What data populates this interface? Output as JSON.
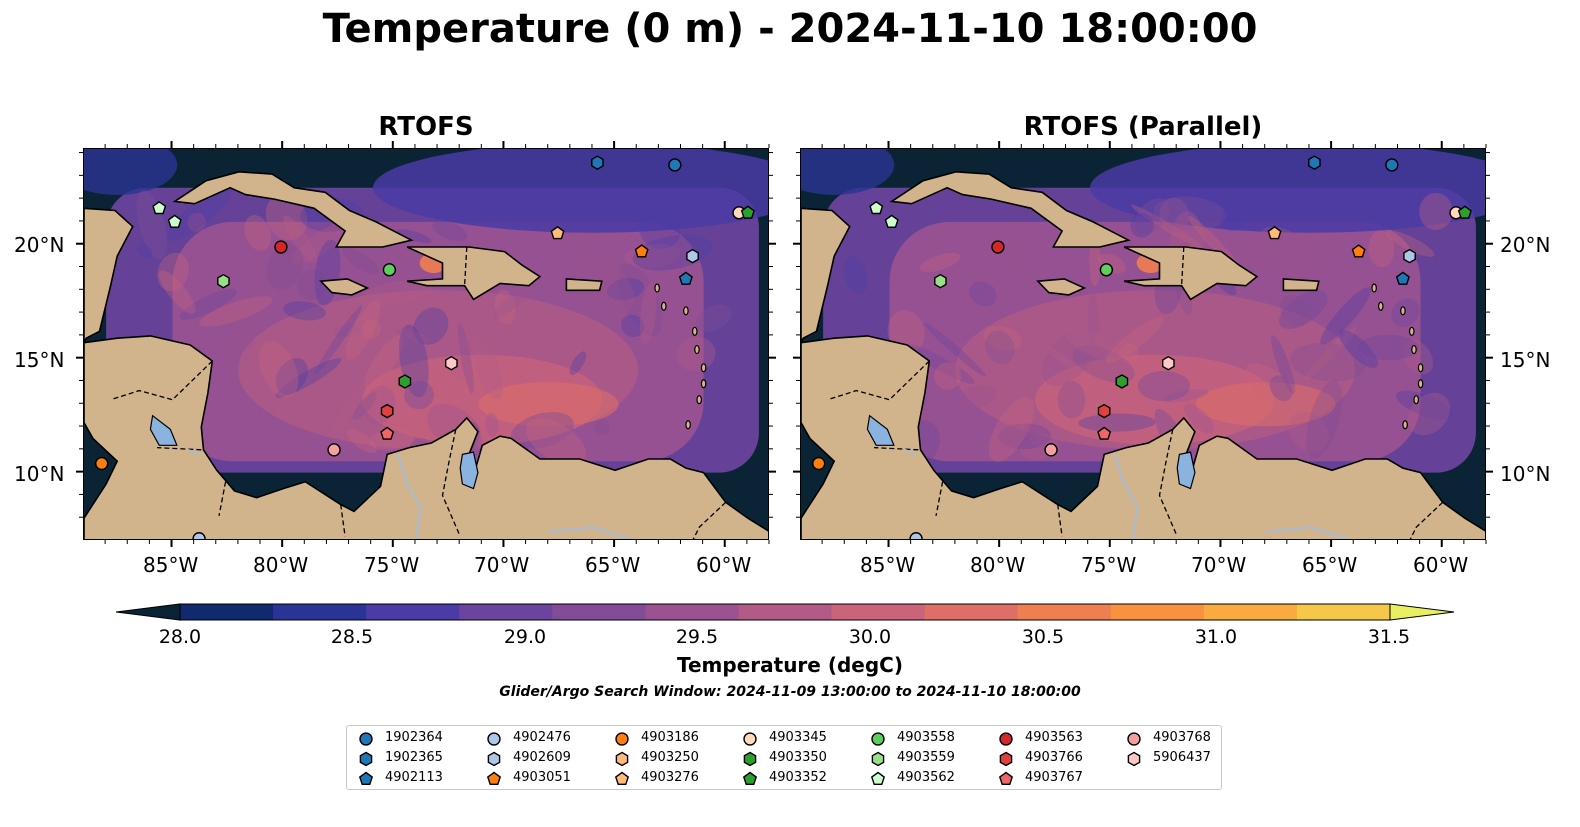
{
  "title": "Temperature (0 m) - 2024-11-10 18:00:00",
  "panels": [
    {
      "title": "RTOFS"
    },
    {
      "title": "RTOFS (Parallel)"
    }
  ],
  "axes": {
    "lon_ticks": [
      "85°W",
      "80°W",
      "75°W",
      "70°W",
      "65°W",
      "60°W"
    ],
    "lat_ticks": [
      "20°N",
      "15°N",
      "10°N"
    ],
    "lon_range": [
      -89,
      -58
    ],
    "lat_range": [
      7,
      24.2
    ]
  },
  "colorbar": {
    "label": "Temperature (degC)",
    "ticks": [
      "28.0",
      "28.5",
      "29.0",
      "29.5",
      "30.0",
      "30.5",
      "31.0",
      "31.5"
    ],
    "range": [
      28.0,
      31.5
    ],
    "colors": [
      "#0a2436",
      "#112a6e",
      "#2a3494",
      "#4a3ba5",
      "#6a449e",
      "#824c96",
      "#9a5390",
      "#b25b86",
      "#c9647a",
      "#de6f66",
      "#ef7e50",
      "#f8923f",
      "#f9ab40",
      "#f5c84a",
      "#e9ef62"
    ]
  },
  "search_window": "Glider/Argo Search Window: 2024-11-09 13:00:00 to 2024-11-10 18:00:00",
  "land_color": "#d2b48c",
  "legend": [
    {
      "id": "1902364",
      "marker": "circle",
      "color": "#1f77b4"
    },
    {
      "id": "1902365",
      "marker": "hexagon",
      "color": "#1f77b4"
    },
    {
      "id": "4902113",
      "marker": "pentagon",
      "color": "#1f77b4"
    },
    {
      "id": "4902476",
      "marker": "circle",
      "color": "#aec7e8"
    },
    {
      "id": "4902609",
      "marker": "hexagon",
      "color": "#aec7e8"
    },
    {
      "id": "4903051",
      "marker": "pentagon",
      "color": "#ff7f0e"
    },
    {
      "id": "4903186",
      "marker": "circle",
      "color": "#ff7f0e"
    },
    {
      "id": "4903250",
      "marker": "hexagon",
      "color": "#ffbb78"
    },
    {
      "id": "4903276",
      "marker": "pentagon",
      "color": "#ffbb78"
    },
    {
      "id": "4903345",
      "marker": "circle",
      "color": "#ffdab9"
    },
    {
      "id": "4903350",
      "marker": "hexagon",
      "color": "#2ca02c"
    },
    {
      "id": "4903352",
      "marker": "pentagon",
      "color": "#2ca02c"
    },
    {
      "id": "4903558",
      "marker": "circle",
      "color": "#5fce5f"
    },
    {
      "id": "4903559",
      "marker": "hexagon",
      "color": "#98df8a"
    },
    {
      "id": "4903562",
      "marker": "pentagon",
      "color": "#ccffcc"
    },
    {
      "id": "4903563",
      "marker": "circle",
      "color": "#d62728"
    },
    {
      "id": "4903766",
      "marker": "hexagon",
      "color": "#e04040"
    },
    {
      "id": "4903767",
      "marker": "pentagon",
      "color": "#ee6666"
    },
    {
      "id": "4903768",
      "marker": "circle",
      "color": "#f4a0a0"
    },
    {
      "id": "5906437",
      "marker": "hexagon",
      "color": "#ffc8c8"
    }
  ],
  "floats": [
    {
      "id": "4903562",
      "lon": -85.6,
      "lat": 21.6
    },
    {
      "id": "4903562",
      "lon": -84.9,
      "lat": 21.0
    },
    {
      "id": "4903345",
      "lon": -59.4,
      "lat": 21.4
    },
    {
      "id": "4903352",
      "lon": -59.0,
      "lat": 21.4
    },
    {
      "id": "1902364",
      "lon": -62.3,
      "lat": 23.5
    },
    {
      "id": "1902365",
      "lon": -65.8,
      "lat": 23.6
    },
    {
      "id": "4903563",
      "lon": -80.1,
      "lat": 19.9
    },
    {
      "id": "4903558",
      "lon": -75.2,
      "lat": 18.9
    },
    {
      "id": "4903276",
      "lon": -67.6,
      "lat": 20.5
    },
    {
      "id": "4903051",
      "lon": -63.8,
      "lat": 19.7
    },
    {
      "id": "4902609",
      "lon": -61.5,
      "lat": 19.5
    },
    {
      "id": "4902113",
      "lon": -61.8,
      "lat": 18.5
    },
    {
      "id": "4903559",
      "lon": -82.7,
      "lat": 18.4
    },
    {
      "id": "5906437",
      "lon": -72.4,
      "lat": 14.8
    },
    {
      "id": "4903350",
      "lon": -74.5,
      "lat": 14.0
    },
    {
      "id": "4903766",
      "lon": -75.3,
      "lat": 12.7
    },
    {
      "id": "4903767",
      "lon": -75.3,
      "lat": 11.7
    },
    {
      "id": "4903768",
      "lon": -77.7,
      "lat": 11.0
    },
    {
      "id": "4903186",
      "lon": -88.2,
      "lat": 10.4
    },
    {
      "id": "4902476",
      "lon": -83.8,
      "lat": 7.1
    }
  ]
}
